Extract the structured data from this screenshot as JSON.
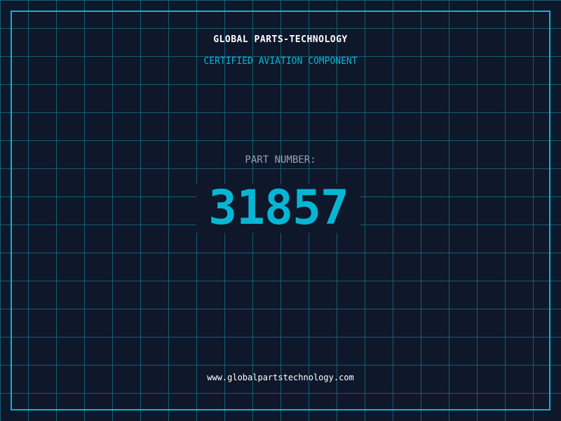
{
  "header": {
    "title": "GLOBAL PARTS-TECHNOLOGY",
    "subtitle": "CERTIFIED AVIATION COMPONENT"
  },
  "part": {
    "label": "PART NUMBER:",
    "number": "31857"
  },
  "footer": {
    "url": "www.globalpartstechnology.com"
  },
  "colors": {
    "background": "#0f172a",
    "accent": "#06b6d4",
    "grid": "#155e75"
  }
}
